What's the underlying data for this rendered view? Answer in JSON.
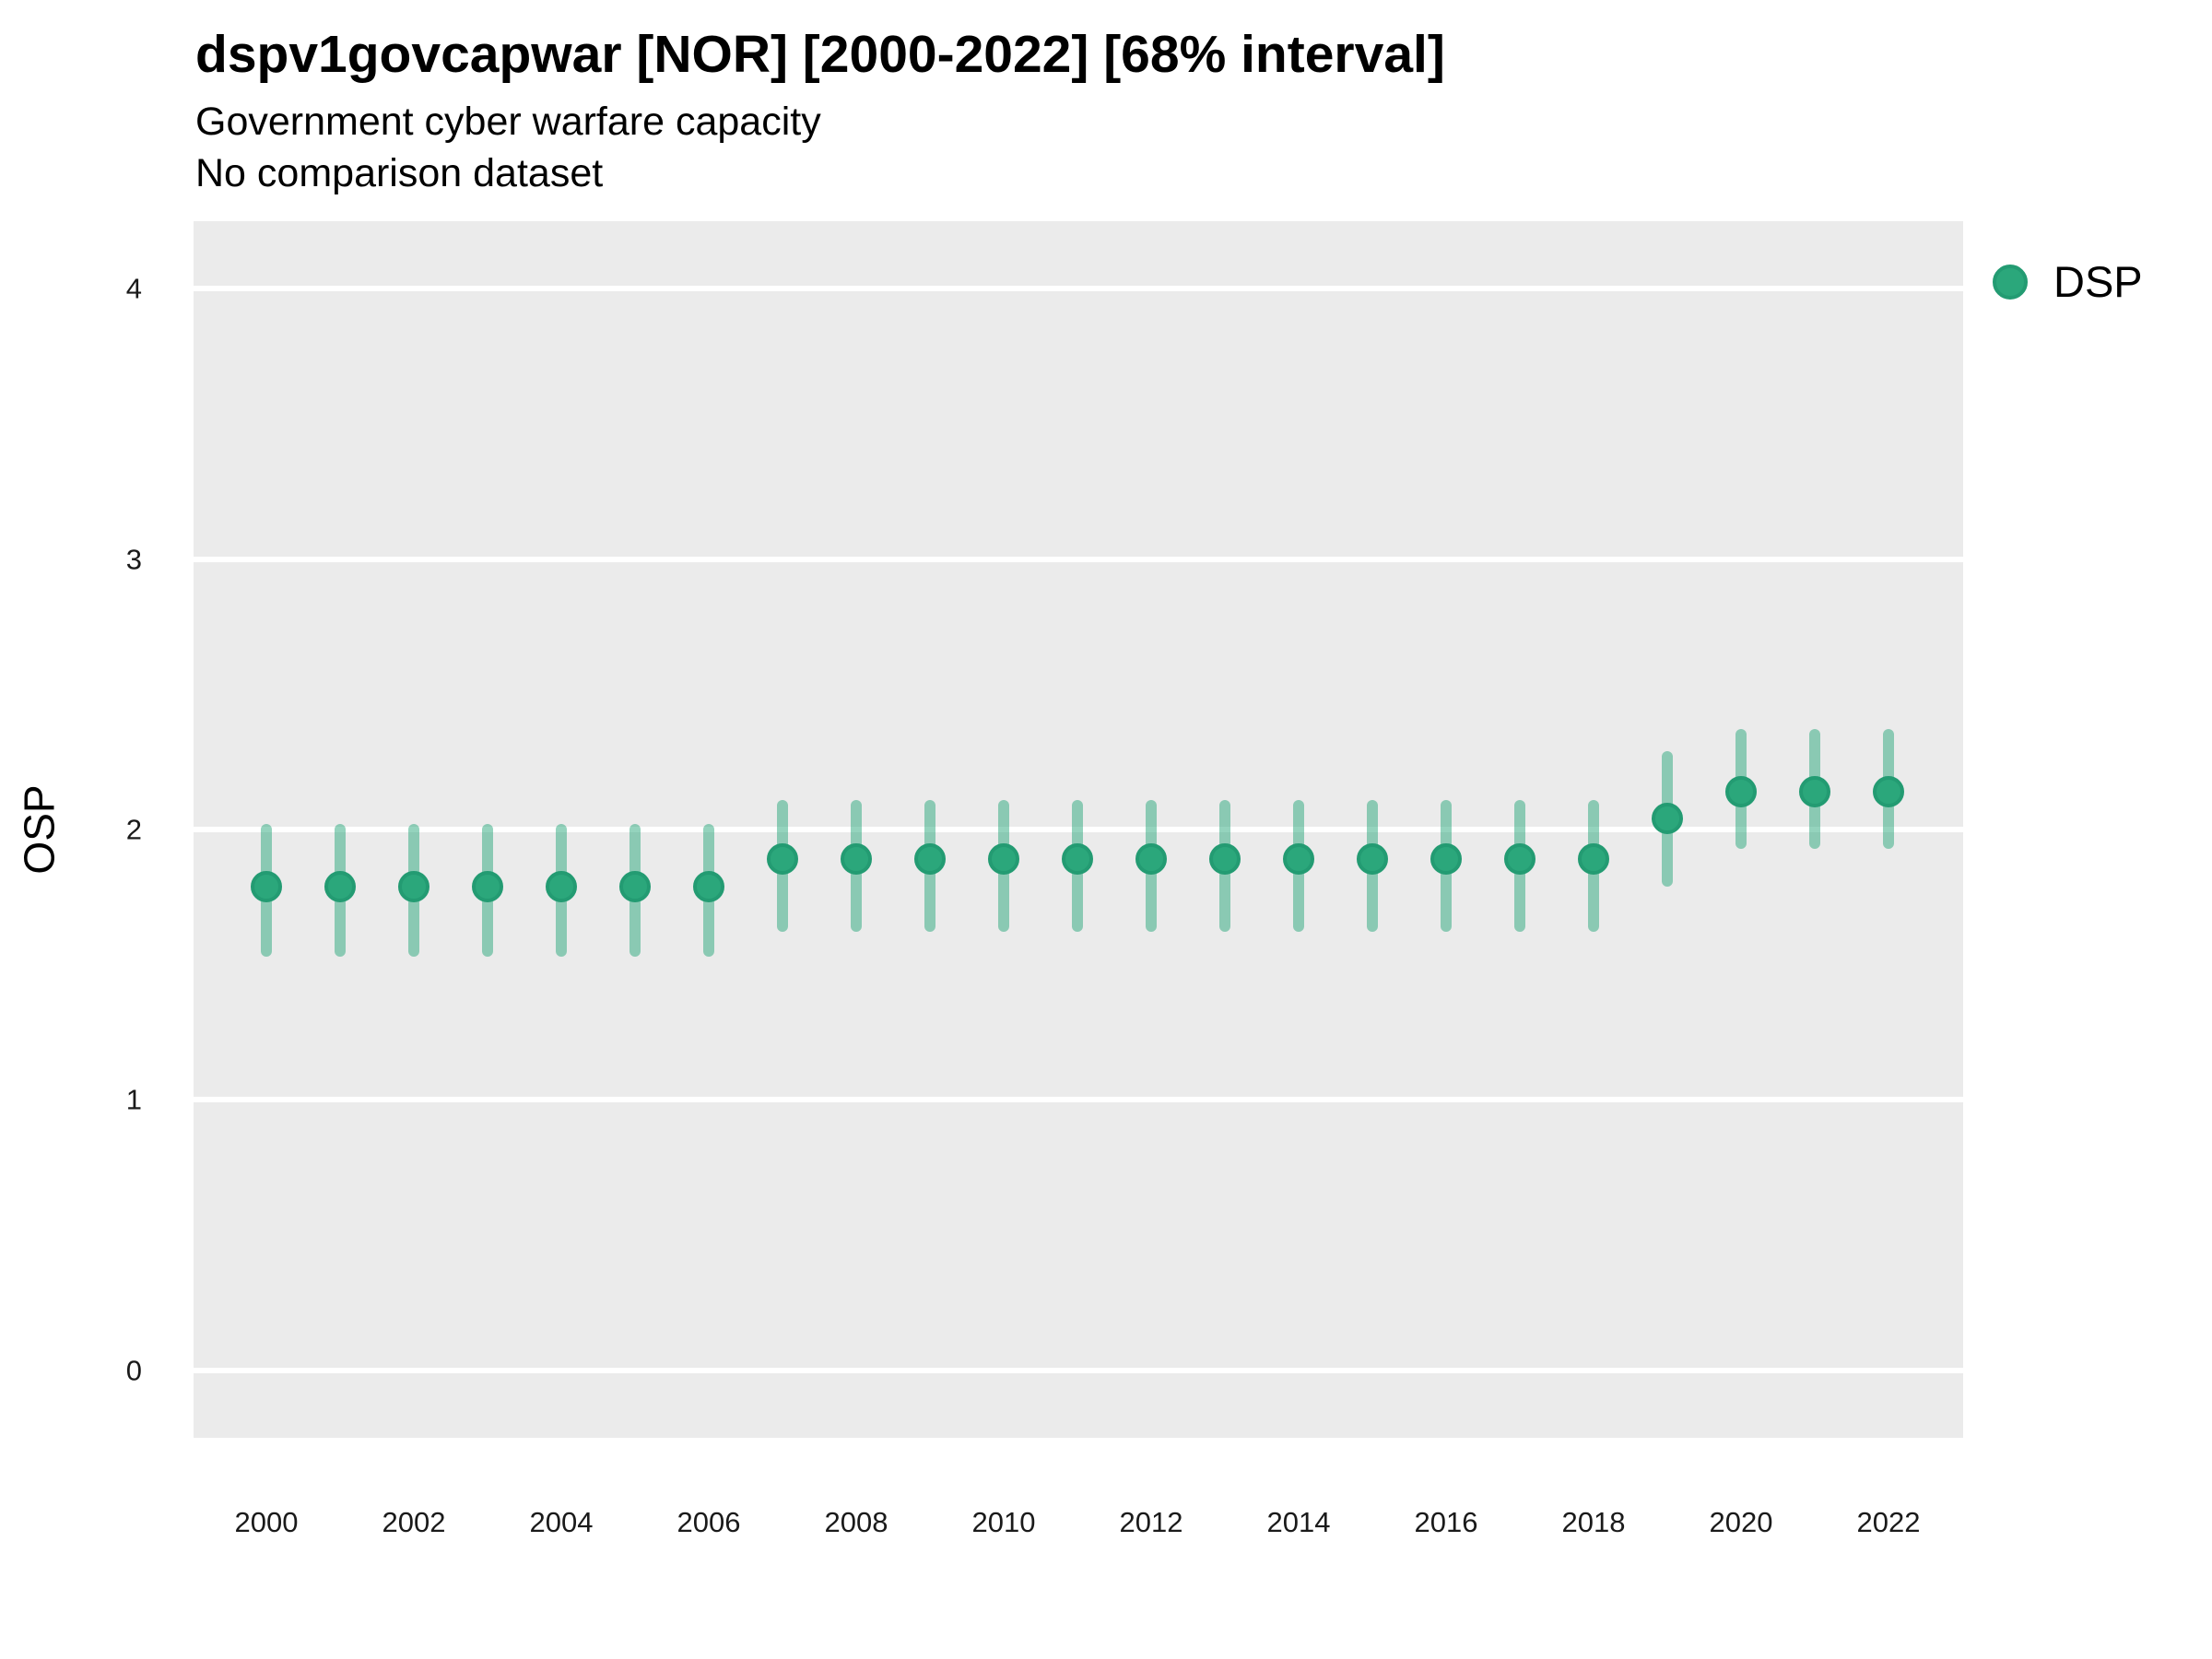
{
  "header": {
    "title": "dspv1govcapwar [NOR] [2000-2022] [68% interval]",
    "subtitle": "Government cyber warfare capacity",
    "note": "No comparison dataset"
  },
  "legend": {
    "items": [
      {
        "label": "DSP",
        "color": "#2BA77B",
        "border_color": "#239B72"
      }
    ]
  },
  "chart_data": {
    "type": "scatter",
    "variant": "pointrange",
    "title": "dspv1govcapwar [NOR] [2000-2022] [68% interval]",
    "subtitle": "Government cyber warfare capacity",
    "note": "No comparison dataset",
    "xlabel": "",
    "ylabel": "OSP",
    "interval": "68%",
    "grid": "horizontal-major-only",
    "legend_position": "right-top",
    "panel_bg": "#EBEBEB",
    "gridline_color": "#FFFFFF",
    "ylim": [
      -0.25,
      4.25
    ],
    "yticks": [
      0,
      1,
      2,
      3,
      4
    ],
    "xticks": [
      2000,
      2002,
      2004,
      2006,
      2008,
      2010,
      2012,
      2014,
      2016,
      2018,
      2020,
      2022
    ],
    "x": [
      2000,
      2001,
      2002,
      2003,
      2004,
      2005,
      2006,
      2007,
      2008,
      2009,
      2010,
      2011,
      2012,
      2013,
      2014,
      2015,
      2016,
      2017,
      2018,
      2019,
      2020,
      2021,
      2022
    ],
    "series": [
      {
        "name": "DSP",
        "color": "#2BA77B",
        "point_border_color": "#239B72",
        "interval_color": "rgba(42,167,123,0.5)",
        "estimates": [
          1.79,
          1.79,
          1.79,
          1.79,
          1.79,
          1.79,
          1.79,
          1.89,
          1.89,
          1.89,
          1.89,
          1.89,
          1.89,
          1.89,
          1.89,
          1.89,
          1.89,
          1.89,
          1.89,
          2.04,
          2.14,
          2.14,
          2.14
        ],
        "lower": [
          1.53,
          1.53,
          1.53,
          1.53,
          1.53,
          1.53,
          1.53,
          1.62,
          1.62,
          1.62,
          1.62,
          1.62,
          1.62,
          1.62,
          1.62,
          1.62,
          1.62,
          1.62,
          1.62,
          1.79,
          1.93,
          1.93,
          1.93
        ],
        "upper": [
          2.02,
          2.02,
          2.02,
          2.02,
          2.02,
          2.02,
          2.02,
          2.11,
          2.11,
          2.11,
          2.11,
          2.11,
          2.11,
          2.11,
          2.11,
          2.11,
          2.11,
          2.11,
          2.11,
          2.29,
          2.37,
          2.37,
          2.37
        ]
      }
    ]
  }
}
